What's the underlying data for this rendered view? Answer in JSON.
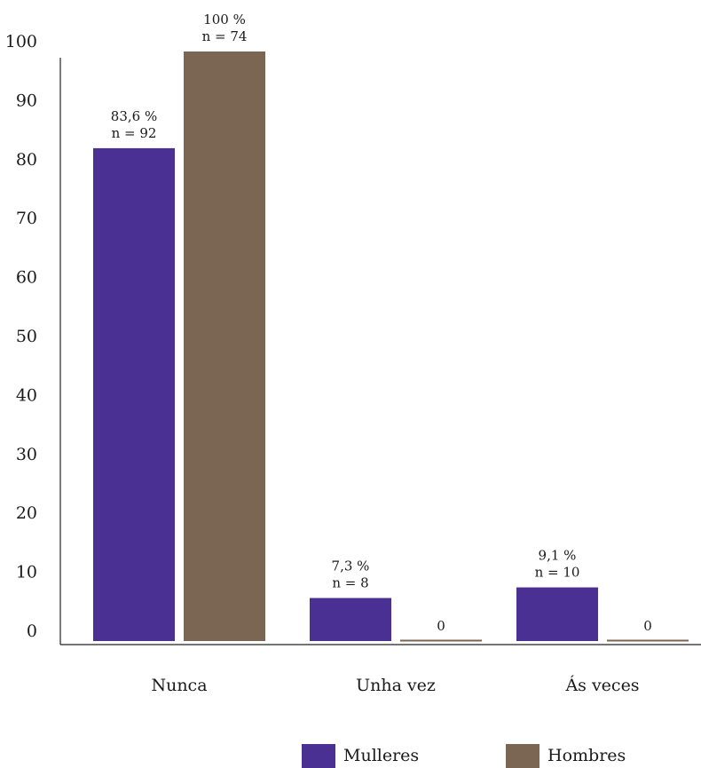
{
  "chart_data": {
    "type": "bar",
    "categories": [
      "Nunca",
      "Unha vez",
      "Ás veces"
    ],
    "series": [
      {
        "name": "Mulleres",
        "color": "#4a3093",
        "values": [
          83.6,
          7.3,
          9.1
        ],
        "labels": [
          [
            "83,6 %",
            "n = 92"
          ],
          [
            "7,3 %",
            "n = 8"
          ],
          [
            "9,1 %",
            "n = 10"
          ]
        ]
      },
      {
        "name": "Hombres",
        "color": "#7a6652",
        "values": [
          100,
          0,
          0
        ],
        "labels": [
          [
            "100 %",
            "n = 74"
          ],
          [
            "0"
          ],
          [
            "0"
          ]
        ]
      }
    ],
    "yticks": [
      "0",
      "10",
      "20",
      "30",
      "40",
      "50",
      "60",
      "70",
      "80",
      "90",
      "100"
    ],
    "ylim": [
      0,
      100
    ],
    "grid": false,
    "legend_position": "bottom"
  }
}
